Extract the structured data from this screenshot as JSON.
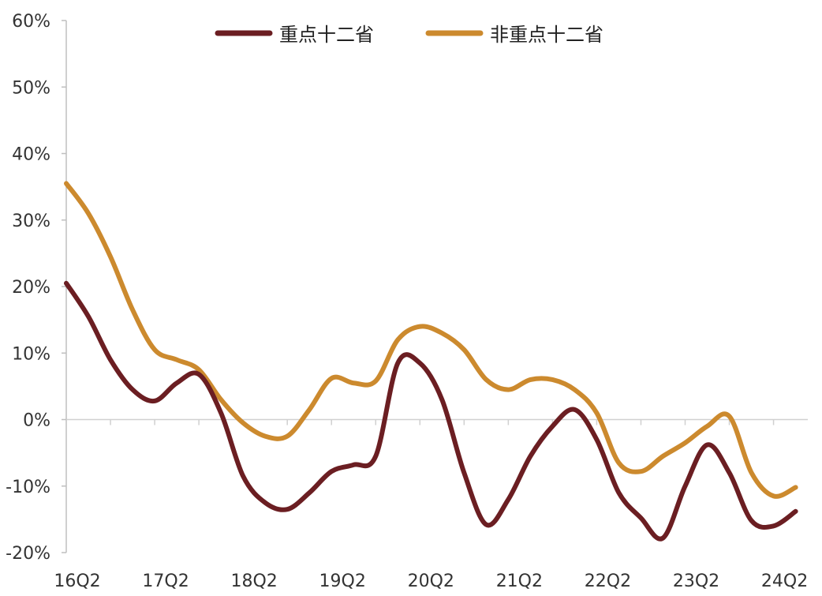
{
  "chart_data": {
    "type": "line",
    "y_unit": "%",
    "ylim": [
      -20,
      60
    ],
    "yticks": [
      -20,
      -10,
      0,
      10,
      20,
      30,
      40,
      50,
      60
    ],
    "ytick_labels": [
      "-20%",
      "-10%",
      "0%",
      "10%",
      "20%",
      "30%",
      "40%",
      "50%",
      "60%"
    ],
    "x": [
      "16Q2",
      "16Q3",
      "16Q4",
      "17Q1",
      "17Q2",
      "17Q3",
      "17Q4",
      "18Q1",
      "18Q2",
      "18Q3",
      "18Q4",
      "19Q1",
      "19Q2",
      "19Q3",
      "19Q4",
      "20Q1",
      "20Q2",
      "20Q3",
      "20Q4",
      "21Q1",
      "21Q2",
      "21Q3",
      "21Q4",
      "22Q1",
      "22Q2",
      "22Q3",
      "22Q4",
      "23Q1",
      "23Q2",
      "23Q3",
      "23Q4",
      "24Q1",
      "24Q2",
      "24Q3"
    ],
    "xtick_labels": [
      "16Q2",
      "17Q2",
      "18Q2",
      "19Q2",
      "20Q2",
      "21Q2",
      "22Q2",
      "23Q2",
      "24Q2"
    ],
    "grid": false,
    "legend_position": "top-center",
    "series": [
      {
        "name": "重点十二省",
        "color": "#6b1e22",
        "values": [
          20.5,
          15.5,
          9.0,
          4.5,
          2.8,
          5.5,
          6.8,
          1.0,
          -8.5,
          -12.5,
          -13.5,
          -11.0,
          -7.8,
          -6.8,
          -5.5,
          8.5,
          8.5,
          3.0,
          -8.0,
          -15.8,
          -12.0,
          -5.5,
          -1.0,
          1.5,
          -3.0,
          -11.0,
          -14.8,
          -17.8,
          -10.0,
          -3.8,
          -8.0,
          -15.2,
          -16.0,
          -13.8
        ]
      },
      {
        "name": "非重点十二省",
        "color": "#cc8a2e",
        "values": [
          35.5,
          31.0,
          24.5,
          16.5,
          10.5,
          9.0,
          7.5,
          3.0,
          -0.5,
          -2.5,
          -2.5,
          1.5,
          6.2,
          5.5,
          5.8,
          12.0,
          14.0,
          13.0,
          10.5,
          6.0,
          4.5,
          6.0,
          6.0,
          4.5,
          1.0,
          -6.5,
          -7.8,
          -5.5,
          -3.5,
          -1.0,
          0.5,
          -8.0,
          -11.5,
          -10.2
        ]
      }
    ]
  }
}
